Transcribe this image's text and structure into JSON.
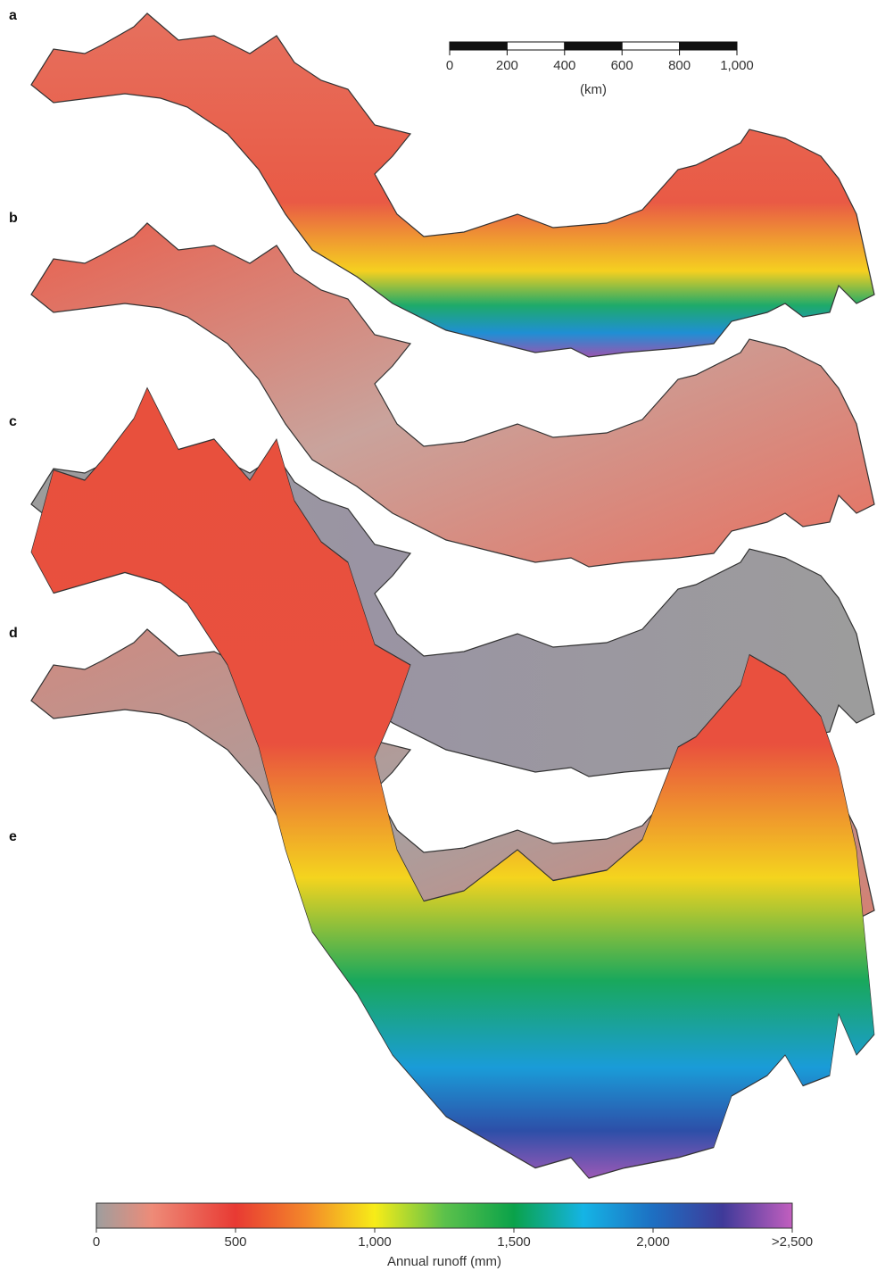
{
  "panels": [
    "a",
    "b",
    "c",
    "d",
    "e"
  ],
  "scale_bar": {
    "ticks": [
      0,
      200,
      400,
      600,
      800,
      {
        "value": 1000,
        "label": "1,000"
      }
    ],
    "unit": "(km)"
  },
  "colorbar": {
    "ticks": [
      0,
      500,
      {
        "value": 1000,
        "label": "1,000"
      },
      {
        "value": 1500,
        "label": "1,500"
      },
      {
        "value": 2000,
        "label": "2,000"
      },
      {
        "value": 2500,
        "label": ">2,500"
      }
    ],
    "label": "Annual runoff (mm)"
  }
}
